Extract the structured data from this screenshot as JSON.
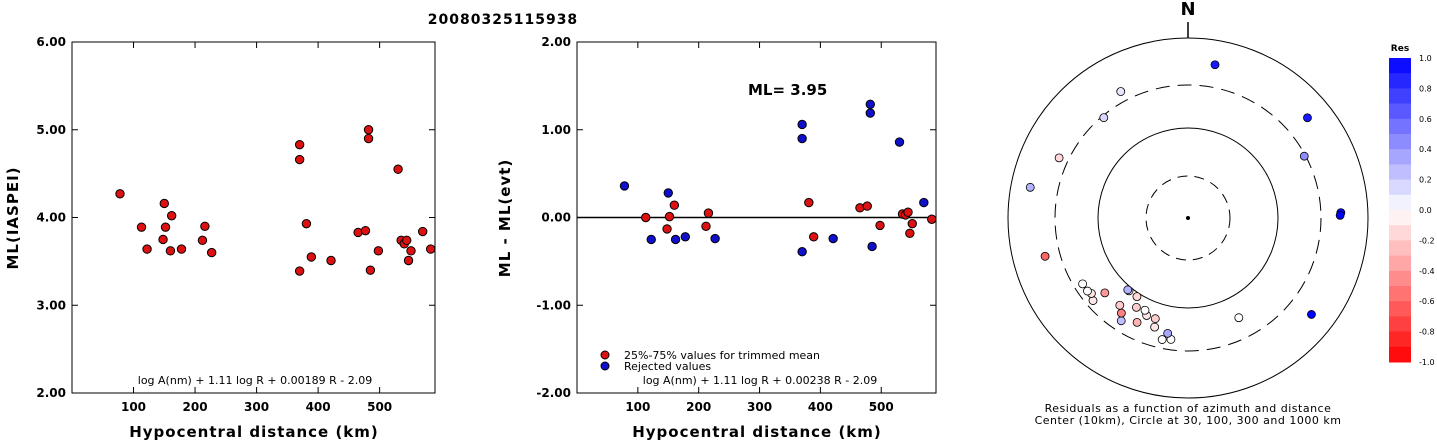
{
  "title": "20080325115938",
  "chart_data": [
    {
      "type": "scatter",
      "xlabel": "Hypocentral distance (km)",
      "ylabel": "ML(IASPEI)",
      "xlim": [
        0,
        590
      ],
      "ylim": [
        2.0,
        6.0
      ],
      "xticks": [
        "100",
        "200",
        "300",
        "400",
        "500"
      ],
      "yticks": [
        "2.00",
        "3.00",
        "4.00",
        "5.00",
        "6.00"
      ],
      "formula": "log A(nm) + 1.11 log R + 0.00189 R - 2.09",
      "series": [
        {
          "color": "#dd1111",
          "points": [
            [
              78,
              4.27
            ],
            [
              113,
              3.89
            ],
            [
              122,
              3.64
            ],
            [
              148,
              3.75
            ],
            [
              150,
              4.16
            ],
            [
              152,
              3.89
            ],
            [
              160,
              3.62
            ],
            [
              162,
              4.02
            ],
            [
              178,
              3.64
            ],
            [
              212,
              3.74
            ],
            [
              216,
              3.9
            ],
            [
              227,
              3.6
            ],
            [
              370,
              4.83
            ],
            [
              370,
              4.66
            ],
            [
              370,
              3.39
            ],
            [
              381,
              3.93
            ],
            [
              389,
              3.55
            ],
            [
              421,
              3.51
            ],
            [
              465,
              3.83
            ],
            [
              477,
              3.85
            ],
            [
              482,
              5.0
            ],
            [
              482,
              4.9
            ],
            [
              485,
              3.4
            ],
            [
              498,
              3.62
            ],
            [
              530,
              4.55
            ],
            [
              535,
              3.74
            ],
            [
              540,
              3.7
            ],
            [
              544,
              3.74
            ],
            [
              547,
              3.51
            ],
            [
              551,
              3.62
            ],
            [
              570,
              3.84
            ],
            [
              583,
              3.64
            ]
          ]
        }
      ]
    },
    {
      "type": "scatter",
      "xlabel": "Hypocentral distance (km)",
      "ylabel": "ML - ML(evt)",
      "xlim": [
        0,
        590
      ],
      "ylim": [
        -2.0,
        2.0
      ],
      "xticks": [
        "100",
        "200",
        "300",
        "400",
        "500"
      ],
      "yticks": [
        "-2.00",
        "-1.00",
        "0.00",
        "1.00",
        "2.00"
      ],
      "ml_label": "ML= 3.95",
      "legend": [
        "25%-75% values for trimmed mean",
        "Rejected values"
      ],
      "formula": "log A(nm) + 1.11 log R + 0.00238 R - 2.09",
      "series": [
        {
          "name": "25%-75% values for trimmed mean",
          "color": "#dd1111",
          "points": [
            [
              113,
              0.0
            ],
            [
              148,
              -0.13
            ],
            [
              152,
              0.01
            ],
            [
              160,
              0.14
            ],
            [
              212,
              -0.1
            ],
            [
              216,
              0.05
            ],
            [
              381,
              0.17
            ],
            [
              389,
              -0.22
            ],
            [
              465,
              0.11
            ],
            [
              477,
              0.13
            ],
            [
              498,
              -0.09
            ],
            [
              535,
              0.04
            ],
            [
              540,
              0.03
            ],
            [
              544,
              0.06
            ],
            [
              547,
              -0.18
            ],
            [
              551,
              -0.07
            ],
            [
              583,
              -0.02
            ]
          ]
        },
        {
          "name": "Rejected values",
          "color": "#1010cc",
          "points": [
            [
              78,
              0.36
            ],
            [
              122,
              -0.25
            ],
            [
              150,
              0.28
            ],
            [
              162,
              -0.25
            ],
            [
              178,
              -0.22
            ],
            [
              227,
              -0.24
            ],
            [
              370,
              1.06
            ],
            [
              370,
              0.9
            ],
            [
              370,
              -0.39
            ],
            [
              421,
              -0.24
            ],
            [
              482,
              1.29
            ],
            [
              482,
              1.19
            ],
            [
              485,
              -0.33
            ],
            [
              530,
              0.86
            ],
            [
              570,
              0.17
            ]
          ]
        }
      ]
    },
    {
      "type": "polar-scatter",
      "north_label": "N",
      "caption_line1": "Residuals as a function of azimuth and distance",
      "caption_line2": "Center (10km), Circle at 30, 100, 300 and 1000 km",
      "rings_km": [
        30,
        100,
        300,
        1000
      ],
      "colorbar_title": "Res",
      "colorbar_ticks": [
        "1.0",
        "0.8",
        "0.6",
        "0.4",
        "0.2",
        "0.0",
        "-0.2",
        "-0.4",
        "-0.6",
        "-0.8",
        "-1.0"
      ],
      "points": [
        {
          "az": 10,
          "dist": 535,
          "res": 0.9
        },
        {
          "az": 50,
          "dist": 540,
          "res": 0.9
        },
        {
          "az": 62,
          "dist": 290,
          "res": 0.45
        },
        {
          "az": 88,
          "dist": 500,
          "res": 1.0
        },
        {
          "az": 89,
          "dist": 490,
          "res": 1.0
        },
        {
          "az": 128,
          "dist": 550,
          "res": 1.0
        },
        {
          "az": 153,
          "dist": 175,
          "res": 0.0
        },
        {
          "az": 188,
          "dist": 230,
          "res": 0.0
        },
        {
          "az": 190,
          "dist": 200,
          "res": 0.35
        },
        {
          "az": 192,
          "dist": 240,
          "res": 0.0
        },
        {
          "az": 197,
          "dist": 185,
          "res": -0.1
        },
        {
          "az": 198,
          "dist": 150,
          "res": -0.2
        },
        {
          "az": 203,
          "dist": 150,
          "res": -0.1
        },
        {
          "az": 205,
          "dist": 135,
          "res": 0.0
        },
        {
          "az": 206,
          "dist": 195,
          "res": -0.3
        },
        {
          "az": 210,
          "dist": 140,
          "res": -0.2
        },
        {
          "az": 213,
          "dist": 230,
          "res": 0.25
        },
        {
          "az": 213,
          "dist": 110,
          "res": -0.15
        },
        {
          "az": 215,
          "dist": 195,
          "res": -0.5
        },
        {
          "az": 218,
          "dist": 170,
          "res": -0.2
        },
        {
          "az": 219,
          "dist": 110,
          "res": 0.0
        },
        {
          "az": 220,
          "dist": 110,
          "res": 0.3
        },
        {
          "az": 228,
          "dist": 175,
          "res": -0.4
        },
        {
          "az": 229,
          "dist": 250,
          "res": -0.1
        },
        {
          "az": 232,
          "dist": 230,
          "res": -0.1
        },
        {
          "az": 234,
          "dist": 240,
          "res": 0.0
        },
        {
          "az": 238,
          "dist": 240,
          "res": 0.0
        },
        {
          "az": 255,
          "dist": 440,
          "res": -0.6
        },
        {
          "az": 281,
          "dist": 610,
          "res": 0.3
        },
        {
          "az": 295,
          "dist": 380,
          "res": -0.15
        },
        {
          "az": 320,
          "dist": 285,
          "res": 0.15
        },
        {
          "az": 332,
          "dist": 390,
          "res": 0.1
        }
      ]
    }
  ]
}
